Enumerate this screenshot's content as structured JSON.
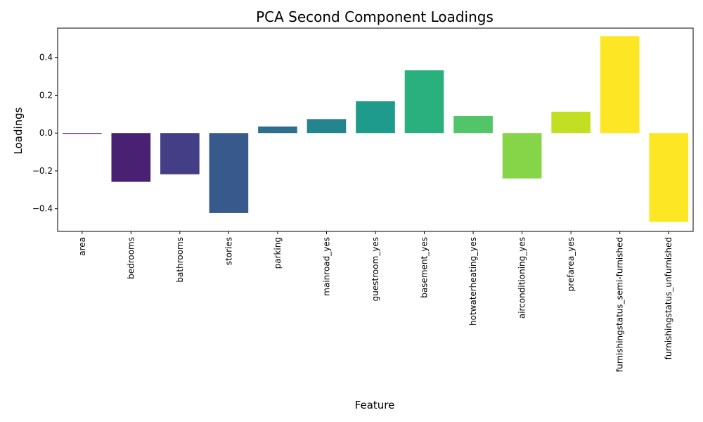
{
  "chart_data": {
    "type": "bar",
    "title": "PCA Second Component Loadings",
    "xlabel": "Feature",
    "ylabel": "Loadings",
    "categories": [
      "area",
      "bedrooms",
      "bathrooms",
      "stories",
      "parking",
      "mainroad_yes",
      "guestroom_yes",
      "basement_yes",
      "hotwaterheating_yes",
      "airconditioning_yes",
      "prefarea_yes",
      "furnishingstatus_semi-furnished",
      "furnishingstatus_unfurnished"
    ],
    "values": [
      -0.002,
      -0.258,
      -0.218,
      -0.423,
      0.035,
      0.074,
      0.168,
      0.332,
      0.09,
      -0.24,
      0.113,
      0.513,
      -0.47
    ],
    "colors": [
      "#440154",
      "#482173",
      "#433e85",
      "#38598c",
      "#2d708e",
      "#25858e",
      "#1e9b8a",
      "#2ab07f",
      "#52c569",
      "#86d549",
      "#c2df23",
      "#fde725",
      "#fde725"
    ],
    "ylim": [
      -0.52,
      0.555
    ],
    "yticks": [
      -0.4,
      -0.2,
      0.0,
      0.2,
      0.4
    ],
    "ytick_labels": [
      "−0.4",
      "−0.2",
      "0.0",
      "0.2",
      "0.4"
    ],
    "grid": false,
    "legend": "none"
  }
}
